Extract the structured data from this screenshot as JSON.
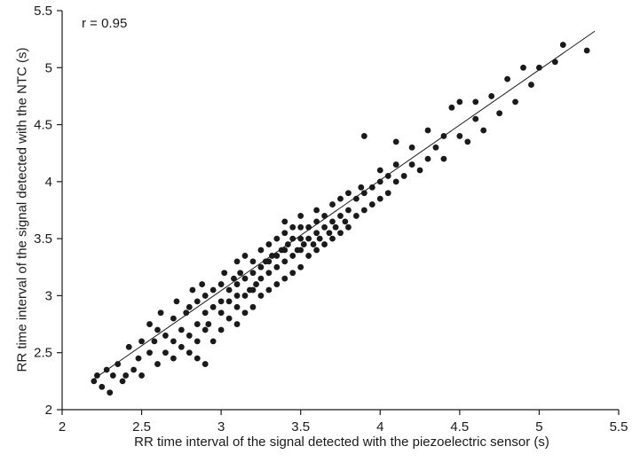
{
  "chart_data": {
    "type": "scatter",
    "title": "",
    "annotation": "r = 0.95",
    "xlabel": "RR time interval of the signal detected with the piezoelectric sensor (s)",
    "ylabel": "RR time interval of the signal detected with the NTC (s)",
    "xlim": [
      2,
      5.5
    ],
    "ylim": [
      2,
      5.5
    ],
    "xticks": [
      2,
      2.5,
      3,
      3.5,
      4,
      4.5,
      5,
      5.5
    ],
    "yticks": [
      2,
      2.5,
      3,
      3.5,
      4,
      4.5,
      5,
      5.5
    ],
    "grid": false,
    "legend": "none",
    "marker_color": "#1a1a1a",
    "line_color": "#1a1a1a",
    "trendline": {
      "x1": 2.2,
      "y1": 2.27,
      "x2": 5.35,
      "y2": 5.32
    },
    "points": [
      [
        2.2,
        2.25
      ],
      [
        2.22,
        2.3
      ],
      [
        2.25,
        2.2
      ],
      [
        2.28,
        2.35
      ],
      [
        2.3,
        2.15
      ],
      [
        2.32,
        2.3
      ],
      [
        2.35,
        2.4
      ],
      [
        2.38,
        2.25
      ],
      [
        2.4,
        2.3
      ],
      [
        2.42,
        2.55
      ],
      [
        2.45,
        2.35
      ],
      [
        2.48,
        2.45
      ],
      [
        2.5,
        2.3
      ],
      [
        2.5,
        2.6
      ],
      [
        2.55,
        2.5
      ],
      [
        2.55,
        2.75
      ],
      [
        2.58,
        2.6
      ],
      [
        2.6,
        2.4
      ],
      [
        2.6,
        2.7
      ],
      [
        2.62,
        2.85
      ],
      [
        2.65,
        2.5
      ],
      [
        2.65,
        2.65
      ],
      [
        2.7,
        2.45
      ],
      [
        2.7,
        2.6
      ],
      [
        2.7,
        2.8
      ],
      [
        2.72,
        2.95
      ],
      [
        2.75,
        2.55
      ],
      [
        2.75,
        2.7
      ],
      [
        2.78,
        2.85
      ],
      [
        2.8,
        2.5
      ],
      [
        2.8,
        2.65
      ],
      [
        2.8,
        2.9
      ],
      [
        2.82,
        3.05
      ],
      [
        2.85,
        2.45
      ],
      [
        2.85,
        2.6
      ],
      [
        2.85,
        2.75
      ],
      [
        2.85,
        2.95
      ],
      [
        2.88,
        3.1
      ],
      [
        2.9,
        2.4
      ],
      [
        2.9,
        2.7
      ],
      [
        2.9,
        2.85
      ],
      [
        2.9,
        3.0
      ],
      [
        2.92,
        2.75
      ],
      [
        2.95,
        2.9
      ],
      [
        2.95,
        3.05
      ],
      [
        2.95,
        2.6
      ],
      [
        3.0,
        2.7
      ],
      [
        3.0,
        2.85
      ],
      [
        3.0,
        2.95
      ],
      [
        3.0,
        3.1
      ],
      [
        3.02,
        3.2
      ],
      [
        3.05,
        2.8
      ],
      [
        3.05,
        2.95
      ],
      [
        3.05,
        3.05
      ],
      [
        3.08,
        3.15
      ],
      [
        3.1,
        2.75
      ],
      [
        3.1,
        2.9
      ],
      [
        3.1,
        3.0
      ],
      [
        3.1,
        3.1
      ],
      [
        3.1,
        3.3
      ],
      [
        3.12,
        3.2
      ],
      [
        3.15,
        2.85
      ],
      [
        3.15,
        3.0
      ],
      [
        3.15,
        3.15
      ],
      [
        3.15,
        3.35
      ],
      [
        3.18,
        3.05
      ],
      [
        3.2,
        2.9
      ],
      [
        3.2,
        3.05
      ],
      [
        3.2,
        3.2
      ],
      [
        3.2,
        3.3
      ],
      [
        3.22,
        3.1
      ],
      [
        3.25,
        3.0
      ],
      [
        3.25,
        3.15
      ],
      [
        3.25,
        3.25
      ],
      [
        3.25,
        3.4
      ],
      [
        3.28,
        3.3
      ],
      [
        3.3,
        3.05
      ],
      [
        3.3,
        3.2
      ],
      [
        3.3,
        3.3
      ],
      [
        3.3,
        3.45
      ],
      [
        3.32,
        3.35
      ],
      [
        3.35,
        3.1
      ],
      [
        3.35,
        3.25
      ],
      [
        3.35,
        3.35
      ],
      [
        3.35,
        3.5
      ],
      [
        3.38,
        3.4
      ],
      [
        3.4,
        3.15
      ],
      [
        3.4,
        3.3
      ],
      [
        3.4,
        3.4
      ],
      [
        3.4,
        3.55
      ],
      [
        3.4,
        3.65
      ],
      [
        3.42,
        3.45
      ],
      [
        3.45,
        3.2
      ],
      [
        3.45,
        3.35
      ],
      [
        3.45,
        3.5
      ],
      [
        3.45,
        3.6
      ],
      [
        3.48,
        3.4
      ],
      [
        3.5,
        3.25
      ],
      [
        3.5,
        3.4
      ],
      [
        3.5,
        3.5
      ],
      [
        3.5,
        3.6
      ],
      [
        3.5,
        3.7
      ],
      [
        3.52,
        3.45
      ],
      [
        3.55,
        3.35
      ],
      [
        3.55,
        3.5
      ],
      [
        3.55,
        3.6
      ],
      [
        3.58,
        3.45
      ],
      [
        3.6,
        3.4
      ],
      [
        3.6,
        3.55
      ],
      [
        3.6,
        3.65
      ],
      [
        3.6,
        3.75
      ],
      [
        3.62,
        3.5
      ],
      [
        3.65,
        3.45
      ],
      [
        3.65,
        3.6
      ],
      [
        3.65,
        3.7
      ],
      [
        3.68,
        3.55
      ],
      [
        3.7,
        3.5
      ],
      [
        3.7,
        3.65
      ],
      [
        3.7,
        3.8
      ],
      [
        3.72,
        3.6
      ],
      [
        3.75,
        3.55
      ],
      [
        3.75,
        3.7
      ],
      [
        3.75,
        3.85
      ],
      [
        3.78,
        3.65
      ],
      [
        3.8,
        3.6
      ],
      [
        3.8,
        3.75
      ],
      [
        3.8,
        3.9
      ],
      [
        3.85,
        3.7
      ],
      [
        3.85,
        3.85
      ],
      [
        3.88,
        3.95
      ],
      [
        3.9,
        3.75
      ],
      [
        3.9,
        3.9
      ],
      [
        3.9,
        4.4
      ],
      [
        3.95,
        3.8
      ],
      [
        3.95,
        3.95
      ],
      [
        4.0,
        3.85
      ],
      [
        4.0,
        4.0
      ],
      [
        4.0,
        4.1
      ],
      [
        4.05,
        3.9
      ],
      [
        4.05,
        4.05
      ],
      [
        4.1,
        4.0
      ],
      [
        4.1,
        4.15
      ],
      [
        4.1,
        4.35
      ],
      [
        4.15,
        4.05
      ],
      [
        4.2,
        4.15
      ],
      [
        4.2,
        4.3
      ],
      [
        4.25,
        4.1
      ],
      [
        4.3,
        4.2
      ],
      [
        4.3,
        4.45
      ],
      [
        4.35,
        4.3
      ],
      [
        4.4,
        4.2
      ],
      [
        4.4,
        4.4
      ],
      [
        4.45,
        4.65
      ],
      [
        4.5,
        4.4
      ],
      [
        4.5,
        4.7
      ],
      [
        4.55,
        4.35
      ],
      [
        4.6,
        4.55
      ],
      [
        4.6,
        4.7
      ],
      [
        4.65,
        4.45
      ],
      [
        4.7,
        4.75
      ],
      [
        4.75,
        4.6
      ],
      [
        4.8,
        4.9
      ],
      [
        4.85,
        4.7
      ],
      [
        4.9,
        5.0
      ],
      [
        4.95,
        4.85
      ],
      [
        5.0,
        5.0
      ],
      [
        5.1,
        5.05
      ],
      [
        5.15,
        5.2
      ],
      [
        5.3,
        5.15
      ]
    ]
  }
}
